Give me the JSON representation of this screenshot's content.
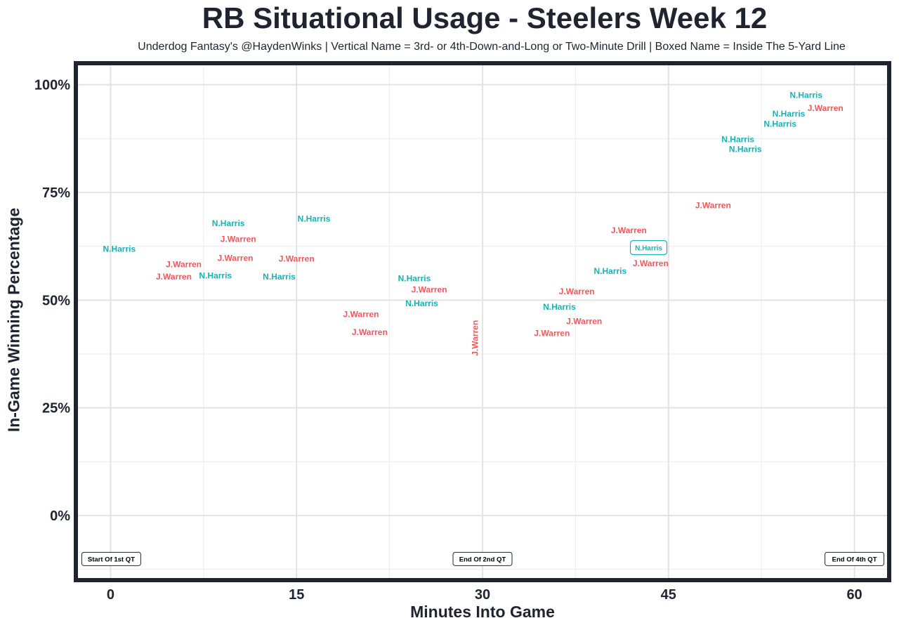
{
  "chart_data": {
    "type": "scatter",
    "title": "RB Situational Usage - Steelers Week 12",
    "subtitle": "Underdog Fantasy's @HaydenWinks | Vertical Name = 3rd- or 4th-Down-and-Long or Two-Minute Drill | Boxed Name = Inside The 5-Yard Line",
    "xlabel": "Minutes Into Game",
    "ylabel": "In-Game Winning Percentage",
    "xlim": [
      -2.8,
      62.8
    ],
    "ylim": [
      -15,
      105
    ],
    "xticks": [
      0,
      15,
      30,
      45,
      60
    ],
    "xtick_labels": [
      "0",
      "15",
      "30",
      "45",
      "60"
    ],
    "yticks": [
      0,
      25,
      50,
      75,
      100
    ],
    "ytick_labels": [
      "0%",
      "25%",
      "50%",
      "75%",
      "100%"
    ],
    "grid": true,
    "colors": {
      "N.Harris": "#17b3b8",
      "J.Warren": "#f5565a",
      "frame": "#1f2430"
    },
    "points": [
      {
        "name": "N.Harris",
        "x": 0.7,
        "y": 61.9
      },
      {
        "name": "J.Warren",
        "x": 5.9,
        "y": 58.3
      },
      {
        "name": "J.Warren",
        "x": 5.1,
        "y": 57.7
      },
      {
        "name": "N.Harris",
        "x": 7.1,
        "y": 55.7
      },
      {
        "name": "N.Harris",
        "x": 9.5,
        "y": 67.8
      },
      {
        "name": "J.Warren",
        "x": 10.3,
        "y": 66.4
      },
      {
        "name": "J.Warren",
        "x": 8.7,
        "y": 64.3
      },
      {
        "name": "N.Harris",
        "x": 16.4,
        "y": 68.9
      },
      {
        "name": "J.Warren",
        "x": 15.0,
        "y": 59.6
      },
      {
        "name": "N.Harris",
        "x": 13.6,
        "y": 55.4
      },
      {
        "name": "J.Warren",
        "x": 20.2,
        "y": 46.7
      },
      {
        "name": "J.Warren",
        "x": 20.9,
        "y": 44.8
      },
      {
        "name": "J.Warren",
        "x": 25.7,
        "y": 52.4
      },
      {
        "name": "N.Harris",
        "x": 25.1,
        "y": 51.5
      },
      {
        "name": "N.Harris",
        "x": 24.5,
        "y": 50.5
      },
      {
        "name": "J.Warren",
        "x": 29.4,
        "y": 41.2,
        "vertical": true
      },
      {
        "name": "N.Harris",
        "x": 36.2,
        "y": 48.4
      },
      {
        "name": "J.Warren",
        "x": 37.6,
        "y": 49.7
      },
      {
        "name": "J.Warren",
        "x": 38.2,
        "y": 47.4
      },
      {
        "name": "J.Warren",
        "x": 35.6,
        "y": 44.6
      },
      {
        "name": "N.Harris",
        "x": 40.3,
        "y": 56.7
      },
      {
        "name": "J.Warren",
        "x": 42.2,
        "y": 58.5
      },
      {
        "name": "J.Warren",
        "x": 41.8,
        "y": 61.6
      },
      {
        "name": "N.Harris",
        "x": 43.4,
        "y": 62.2,
        "boxed": true
      },
      {
        "name": "J.Warren",
        "x": 48.6,
        "y": 72.0
      },
      {
        "name": "N.Harris",
        "x": 50.6,
        "y": 87.3
      },
      {
        "name": "N.Harris",
        "x": 51.2,
        "y": 85.0
      },
      {
        "name": "N.Harris",
        "x": 54.0,
        "y": 90.9
      },
      {
        "name": "N.Harris",
        "x": 54.7,
        "y": 93.3
      },
      {
        "name": "N.Harris",
        "x": 56.1,
        "y": 95.3
      },
      {
        "name": "J.Warren",
        "x": 56.3,
        "y": 94.6
      }
    ],
    "annotations": [
      {
        "text": "Start Of 1st QT",
        "x": 0,
        "y": -10,
        "anchor": "start"
      },
      {
        "text": "End Of 2nd QT",
        "x": 30,
        "y": -10,
        "anchor": "middle"
      },
      {
        "text": "End Of 4th QT",
        "x": 60,
        "y": -10,
        "anchor": "middle"
      }
    ]
  }
}
